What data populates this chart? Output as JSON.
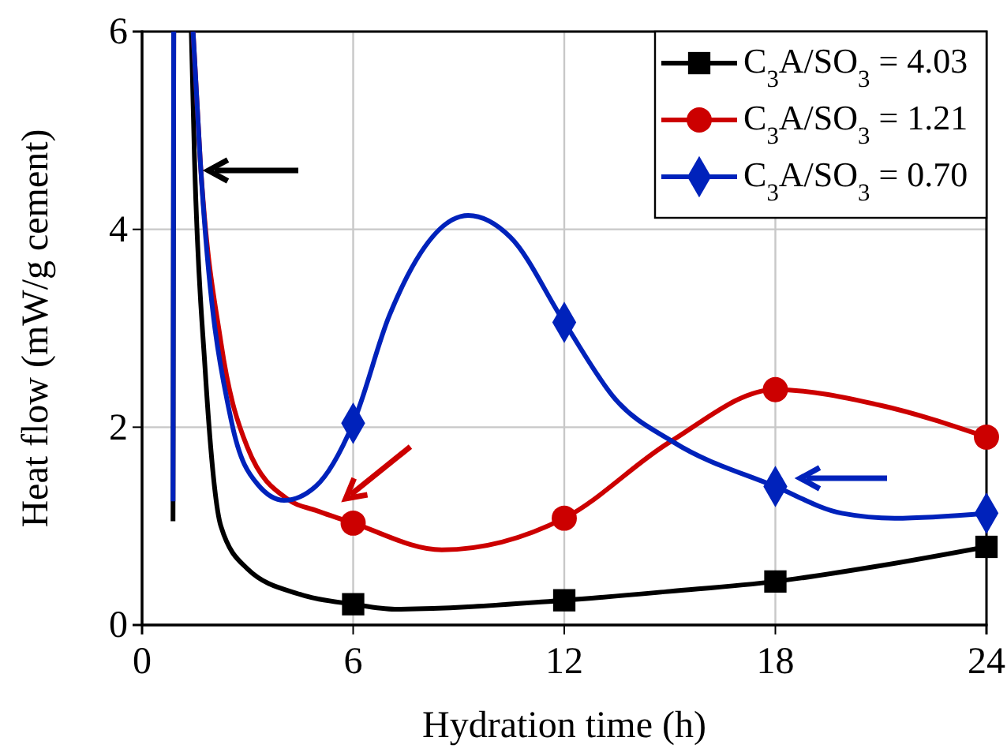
{
  "chart_data": {
    "type": "line",
    "xlabel": "Hydration time (h)",
    "ylabel": "Heat flow (mW/g cement)",
    "xlim": [
      0,
      24
    ],
    "ylim": [
      0,
      6
    ],
    "xticks": [
      0,
      6,
      12,
      18,
      24
    ],
    "yticks": [
      0,
      2,
      4,
      6
    ],
    "grid": true,
    "legend": "top right",
    "line_style": "solid",
    "series": [
      {
        "name": "C$_{3}$A/SO$_{3}$ = 4.03",
        "color": "#000000",
        "x": [
          0.88,
          0.9,
          1.15,
          1.4,
          1.49,
          1.79,
          2.24,
          2.99,
          4.49,
          6,
          7.18,
          12,
          15,
          18,
          21,
          24
        ],
        "values": [
          1.05,
          6,
          null,
          6,
          4.72,
          2.6,
          1.0,
          0.57,
          0.31,
          0.21,
          0.16,
          0.25,
          0.34,
          0.44,
          0.6,
          0.79
        ]
      },
      {
        "name": "C$_{3}$A/SO$_{3}$ = 1.21",
        "color": "#cc0000",
        "x": [
          1.45,
          1.65,
          2.24,
          2.99,
          4.19,
          4.93,
          6,
          8.52,
          12,
          15,
          18,
          21,
          24
        ],
        "values": [
          6,
          4.72,
          2.86,
          1.8,
          1.26,
          1.16,
          1.03,
          0.76,
          1.08,
          1.85,
          2.38,
          2.22,
          1.9
        ]
      },
      {
        "name": "C$_{3}$A/SO$_{3}$ = 0.70",
        "color": "#0022bb",
        "x": [
          0.88,
          0.9,
          1.15,
          1.45,
          1.65,
          2.54,
          3.29,
          4.04,
          4.93,
          6,
          7.03,
          9.27,
          10.47,
          12,
          13.46,
          15.1,
          18,
          19.89,
          21.39,
          24
        ],
        "values": [
          1.25,
          6,
          null,
          6,
          4.72,
          2.06,
          1.42,
          1.26,
          1.4,
          2.04,
          3.13,
          4.14,
          3.92,
          3.06,
          2.28,
          1.85,
          1.4,
          1.13,
          1.08,
          1.13
        ]
      },
      {
        "type": "scatter",
        "color": "#000000",
        "marker": "square",
        "x": [
          6,
          12,
          18,
          24
        ],
        "values": [
          0.21,
          0.25,
          0.44,
          0.79
        ]
      },
      {
        "type": "scatter",
        "color": "#cc0000",
        "marker": "circle",
        "x": [
          6,
          12,
          18,
          24
        ],
        "values": [
          1.03,
          1.08,
          2.38,
          1.9
        ]
      },
      {
        "type": "scatter",
        "color": "#0022bb",
        "marker": "diamond",
        "x": [
          6,
          12,
          18,
          24
        ],
        "values": [
          2.04,
          3.06,
          1.4,
          1.13
        ]
      }
    ]
  }
}
